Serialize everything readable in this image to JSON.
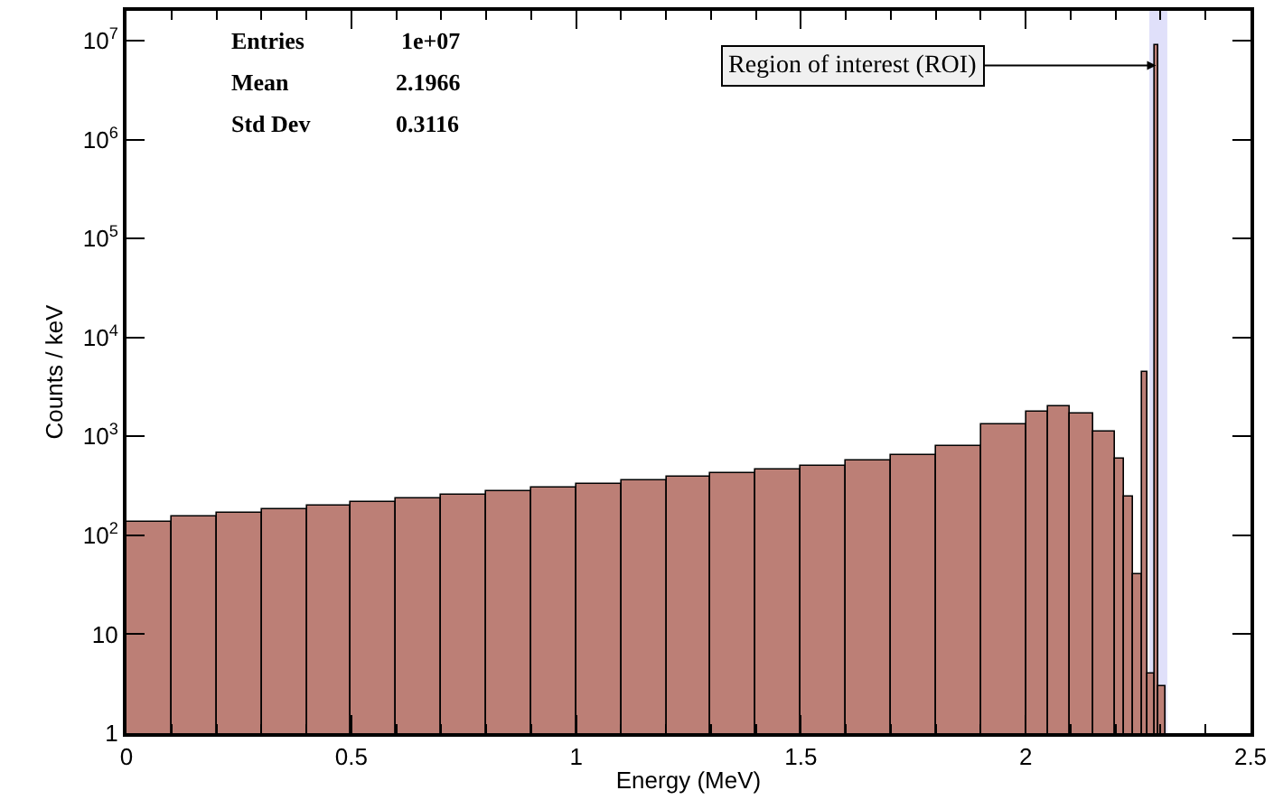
{
  "chart_data": {
    "type": "histogram",
    "xlabel": "Energy (MeV)",
    "ylabel": "Counts / keV",
    "bins": [
      0,
      0.1,
      0.2,
      0.3,
      0.4,
      0.5,
      0.6,
      0.7,
      0.8,
      0.9,
      1.0,
      1.1,
      1.2,
      1.3,
      1.4,
      1.5,
      1.6,
      1.7,
      1.8,
      1.9,
      2.0,
      2.05,
      2.1,
      2.15,
      2.2,
      2.22,
      2.24,
      2.26,
      2.27,
      2.285,
      2.295,
      2.31
    ],
    "values": [
      135,
      155,
      170,
      185,
      200,
      220,
      240,
      260,
      285,
      310,
      335,
      360,
      390,
      420,
      460,
      510,
      560,
      650,
      800,
      1300,
      1800,
      2000,
      1700,
      1100,
      600,
      250,
      40,
      4500,
      4,
      9000000,
      3
    ],
    "color": "#bc7f76",
    "log": "y",
    "xlim": [
      0,
      2.5
    ],
    "xticks": [
      0,
      0.5,
      1,
      1.5,
      2,
      2.5
    ],
    "ylim": [
      1,
      20000000
    ],
    "yticks": [
      1,
      10,
      {
        "value": 100,
        "label": "10$^{2}$"
      },
      {
        "value": 1000,
        "label": "10$^{3}$"
      },
      {
        "value": 10000,
        "label": "10$^{4}$"
      },
      {
        "value": 100000,
        "label": "10$^{5}$"
      },
      {
        "value": 1000000,
        "label": "10$^{6}$"
      },
      {
        "value": 10000000,
        "label": "10$^{7}$"
      }
    ],
    "bands": [
      {
        "axis": "x",
        "from": 2.275,
        "to": 2.315,
        "color": "#e0e0fa"
      }
    ],
    "annotations": [
      "Entries",
      "1e+07",
      "Mean",
      "2.1966",
      "Std Dev",
      "0.3116",
      {
        "text": "Region of interest (ROI)",
        "x": 2.29,
        "y": 5600000
      }
    ],
    "grid": false
  }
}
